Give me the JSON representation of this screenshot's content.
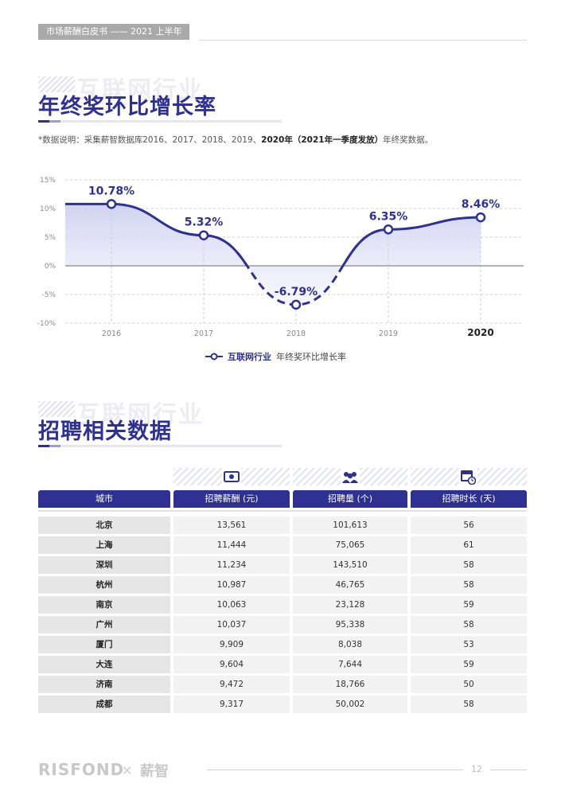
{
  "header": {
    "tag": "市场薪酬白皮书 —— 2021 上半年"
  },
  "section1": {
    "watermark": "互联网行业",
    "title": "年终奖环比增长率",
    "note_prefix": "*数据说明：采集薪智数据库2016、2017、2018、2019、",
    "note_bold": "2020年（2021年一季度发放）",
    "note_suffix": "年终奖数据。"
  },
  "chart_data": {
    "type": "line",
    "x": [
      "2016",
      "2017",
      "2018",
      "2019",
      "2020"
    ],
    "series": [
      {
        "name": "互联网行业",
        "values": [
          10.78,
          5.32,
          -6.79,
          6.35,
          8.46
        ]
      }
    ],
    "data_labels": [
      "10.78%",
      "5.32%",
      "-6.79%",
      "6.35%",
      "8.46%"
    ],
    "yticks": [
      "15%",
      "10%",
      "5%",
      "0%",
      "-5%",
      "-10%"
    ],
    "ylim": [
      -10,
      15
    ],
    "grid": true,
    "legend": "bottom-center",
    "legend_series_label": "互联网行业",
    "legend_metric_label": "年终奖环比增长率",
    "colors": {
      "line": "#2e3192",
      "zero_line": "#9a9a9a"
    }
  },
  "section2": {
    "watermark": "互联网行业",
    "title": "招聘相关数据",
    "icons": [
      "money-icon",
      "people-icon",
      "calendar-clock-icon"
    ],
    "columns": [
      "城市",
      "招聘薪酬 (元)",
      "招聘量 (个)",
      "招聘时长 (天)"
    ],
    "rows": [
      [
        "北京",
        "13,561",
        "101,613",
        "56"
      ],
      [
        "上海",
        "11,444",
        "75,065",
        "61"
      ],
      [
        "深圳",
        "11,234",
        "143,510",
        "58"
      ],
      [
        "杭州",
        "10,987",
        "46,765",
        "58"
      ],
      [
        "南京",
        "10,063",
        "23,128",
        "59"
      ],
      [
        "广州",
        "10,037",
        "95,338",
        "58"
      ],
      [
        "厦门",
        "9,909",
        "8,038",
        "53"
      ],
      [
        "大连",
        "9,604",
        "7,644",
        "59"
      ],
      [
        "济南",
        "9,472",
        "18,766",
        "50"
      ],
      [
        "成都",
        "9,317",
        "50,002",
        "58"
      ]
    ]
  },
  "footer": {
    "logo1": "RISFOND",
    "separator": "×",
    "logo2": "薪智",
    "page": "12"
  },
  "colors": {
    "brand": "#2e3192"
  }
}
